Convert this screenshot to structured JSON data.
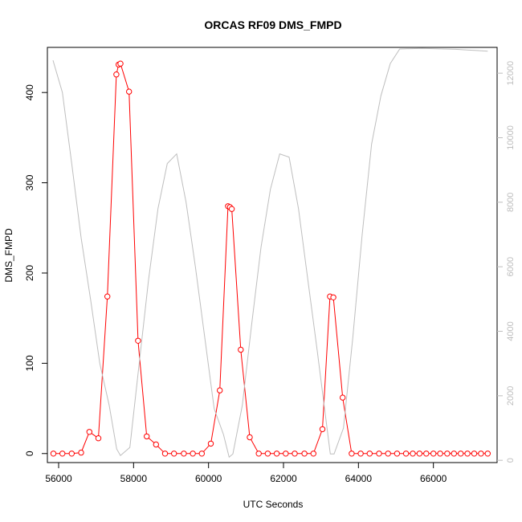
{
  "chart_data": {
    "type": "line",
    "title": "ORCAS RF09 DMS_FMPD",
    "xlabel": "UTC Seconds",
    "ylabel": "DMS_FMPD",
    "xlim": [
      55700,
      67700
    ],
    "ylim": [
      -10,
      450
    ],
    "y2lim": [
      -70,
      12800
    ],
    "xticks": [
      56000,
      58000,
      60000,
      62000,
      64000,
      66000
    ],
    "yticks": [
      0,
      100,
      200,
      300,
      400
    ],
    "y2ticks": [
      0,
      2000,
      4000,
      6000,
      8000,
      10000,
      12000
    ],
    "grid": false,
    "colors": {
      "primary": "#ff0000",
      "secondary": "#bebebe"
    },
    "series": [
      {
        "color": "#ff0000",
        "style": "line+points",
        "axis": "left",
        "x": [
          55860,
          56100,
          56350,
          56600,
          56820,
          57060,
          57300,
          57540,
          57600,
          57650,
          57880,
          58120,
          58350,
          58600,
          58840,
          59080,
          59340,
          59580,
          59820,
          60060,
          60300,
          60520,
          60570,
          60620,
          60860,
          61100,
          61340,
          61580,
          61820,
          62060,
          62300,
          62560,
          62800,
          63040,
          63240,
          63330,
          63580,
          63820,
          64060,
          64300,
          64550,
          64790,
          65030,
          65270,
          65450,
          65630,
          65810,
          66000,
          66180,
          66370,
          66550,
          66730,
          66910,
          67090,
          67270,
          67450
        ],
        "y": [
          0,
          0,
          0,
          1,
          24,
          17,
          174,
          420,
          431,
          432,
          401,
          125,
          19,
          10,
          0,
          0,
          0,
          0,
          0,
          11,
          70,
          274,
          273,
          271,
          115,
          18,
          0,
          0,
          0,
          0,
          0,
          0,
          0,
          27,
          174,
          173,
          62,
          0,
          0,
          0,
          0,
          0,
          0,
          0,
          0,
          0,
          0,
          0,
          0,
          0,
          0,
          0,
          0,
          0,
          0,
          0
        ]
      },
      {
        "color": "#bebebe",
        "style": "line",
        "axis": "right",
        "x": [
          55850,
          56100,
          56350,
          56600,
          56850,
          57100,
          57350,
          57550,
          57650,
          57900,
          58150,
          58400,
          58650,
          58900,
          59150,
          59400,
          59650,
          59900,
          60150,
          60400,
          60550,
          60650,
          60900,
          61150,
          61400,
          61650,
          61900,
          62150,
          62400,
          62650,
          62900,
          63150,
          63250,
          63350,
          63600,
          63850,
          64100,
          64350,
          64600,
          64850,
          65100,
          65400,
          65700,
          66000,
          66300,
          66600,
          66900,
          67200,
          67450
        ],
        "y": [
          12400,
          11400,
          9200,
          6900,
          5000,
          3000,
          1700,
          350,
          150,
          400,
          3000,
          5600,
          7800,
          9200,
          9500,
          8000,
          6000,
          3800,
          1600,
          800,
          100,
          200,
          1700,
          4200,
          6600,
          8400,
          9500,
          9400,
          7800,
          5600,
          3400,
          1100,
          200,
          200,
          1000,
          3800,
          7000,
          9800,
          11300,
          12300,
          12750,
          12760,
          12770,
          12760,
          12750,
          12740,
          12720,
          12700,
          12680
        ]
      }
    ]
  }
}
